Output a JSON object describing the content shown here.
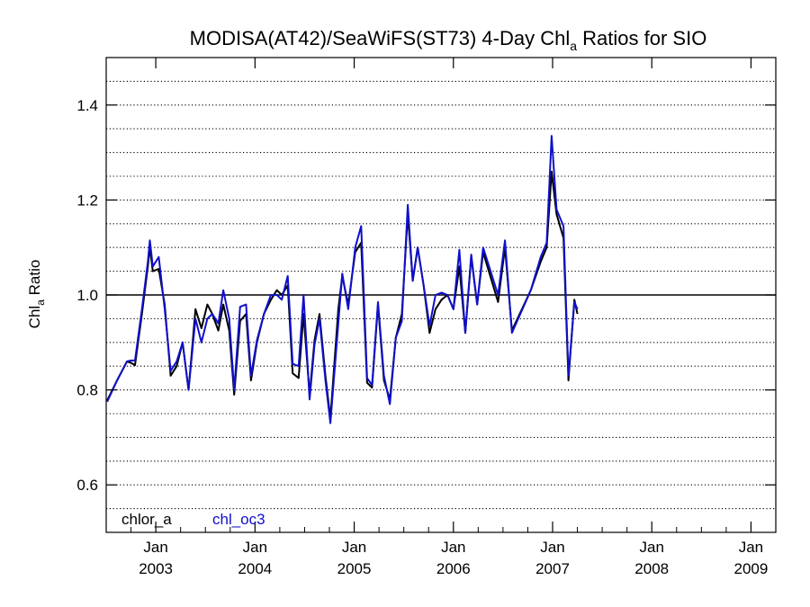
{
  "chart_data": {
    "type": "line",
    "title": {
      "main": "MODISA(AT42)/SeaWiFS(ST73) 4-Day Chl",
      "subscript": "a",
      "rest": " Ratios for SIO"
    },
    "ylabel": {
      "main": "Chl",
      "subscript": "a",
      "rest": " Ratio"
    },
    "xlabel": "",
    "ylim": [
      0.5,
      1.5
    ],
    "xlim": [
      2002.5,
      2009.25
    ],
    "yticks": [
      0.6,
      0.8,
      1.0,
      1.2,
      1.4
    ],
    "ytick_labels": [
      "0.6",
      "0.8",
      "1.0",
      "1.2",
      "1.4"
    ],
    "xticks": [
      {
        "x": 2003.0,
        "month": "Jan",
        "year": "2003"
      },
      {
        "x": 2004.0,
        "month": "Jan",
        "year": "2004"
      },
      {
        "x": 2005.0,
        "month": "Jan",
        "year": "2005"
      },
      {
        "x": 2006.0,
        "month": "Jan",
        "year": "2006"
      },
      {
        "x": 2007.0,
        "month": "Jan",
        "year": "2007"
      },
      {
        "x": 2008.0,
        "month": "Jan",
        "year": "2008"
      },
      {
        "x": 2009.0,
        "month": "Jan",
        "year": "2009"
      }
    ],
    "reference_line": 1.0,
    "grid": {
      "y_dotted": true,
      "y_step": 0.05
    },
    "legend_position": "bottom-left",
    "series": [
      {
        "name": "chlor_a",
        "color": "#000000",
        "points": [
          [
            2002.51,
            0.778
          ],
          [
            2002.61,
            0.82
          ],
          [
            2002.71,
            0.86
          ],
          [
            2002.75,
            0.857
          ],
          [
            2002.79,
            0.852
          ],
          [
            2002.86,
            0.96
          ],
          [
            2002.92,
            1.06
          ],
          [
            2002.94,
            1.1
          ],
          [
            2002.97,
            1.05
          ],
          [
            2003.03,
            1.055
          ],
          [
            2003.09,
            0.98
          ],
          [
            2003.15,
            0.83
          ],
          [
            2003.21,
            0.85
          ],
          [
            2003.27,
            0.9
          ],
          [
            2003.33,
            0.8
          ],
          [
            2003.4,
            0.97
          ],
          [
            2003.46,
            0.93
          ],
          [
            2003.52,
            0.98
          ],
          [
            2003.57,
            0.96
          ],
          [
            2003.63,
            0.925
          ],
          [
            2003.68,
            0.98
          ],
          [
            2003.74,
            0.925
          ],
          [
            2003.79,
            0.79
          ],
          [
            2003.85,
            0.945
          ],
          [
            2003.91,
            0.96
          ],
          [
            2003.96,
            0.82
          ],
          [
            2004.02,
            0.9
          ],
          [
            2004.09,
            0.96
          ],
          [
            2004.16,
            0.99
          ],
          [
            2004.22,
            1.01
          ],
          [
            2004.27,
            1.0
          ],
          [
            2004.33,
            1.02
          ],
          [
            2004.38,
            0.835
          ],
          [
            2004.44,
            0.825
          ],
          [
            2004.49,
            0.96
          ],
          [
            2004.55,
            0.79
          ],
          [
            2004.6,
            0.905
          ],
          [
            2004.65,
            0.96
          ],
          [
            2004.71,
            0.83
          ],
          [
            2004.76,
            0.74
          ],
          [
            2004.84,
            0.97
          ],
          [
            2004.88,
            1.04
          ],
          [
            2004.94,
            0.98
          ],
          [
            2005.01,
            1.09
          ],
          [
            2005.07,
            1.11
          ],
          [
            2005.13,
            0.815
          ],
          [
            2005.18,
            0.805
          ],
          [
            2005.24,
            0.98
          ],
          [
            2005.3,
            0.82
          ],
          [
            2005.36,
            0.78
          ],
          [
            2005.42,
            0.91
          ],
          [
            2005.48,
            0.96
          ],
          [
            2005.54,
            1.17
          ],
          [
            2005.59,
            1.03
          ],
          [
            2005.64,
            1.1
          ],
          [
            2005.7,
            1.02
          ],
          [
            2005.76,
            0.92
          ],
          [
            2005.82,
            0.97
          ],
          [
            2005.88,
            0.99
          ],
          [
            2005.94,
            1.0
          ],
          [
            2006.0,
            0.97
          ],
          [
            2006.06,
            1.06
          ],
          [
            2006.12,
            0.92
          ],
          [
            2006.18,
            1.08
          ],
          [
            2006.24,
            0.98
          ],
          [
            2006.3,
            1.09
          ],
          [
            2006.45,
            0.985
          ],
          [
            2006.52,
            1.1
          ],
          [
            2006.59,
            0.925
          ],
          [
            2006.78,
            1.01
          ],
          [
            2006.88,
            1.07
          ],
          [
            2006.94,
            1.1
          ],
          [
            2006.99,
            1.26
          ],
          [
            2007.04,
            1.17
          ],
          [
            2007.11,
            1.12
          ],
          [
            2007.16,
            0.82
          ],
          [
            2007.22,
            0.99
          ],
          [
            2007.25,
            0.96
          ]
        ]
      },
      {
        "name": "chl_oc3",
        "color": "#1010cc",
        "points": [
          [
            2002.51,
            0.775
          ],
          [
            2002.61,
            0.82
          ],
          [
            2002.71,
            0.86
          ],
          [
            2002.75,
            0.862
          ],
          [
            2002.79,
            0.862
          ],
          [
            2002.86,
            0.97
          ],
          [
            2002.92,
            1.07
          ],
          [
            2002.94,
            1.115
          ],
          [
            2002.97,
            1.06
          ],
          [
            2003.03,
            1.08
          ],
          [
            2003.09,
            0.97
          ],
          [
            2003.15,
            0.84
          ],
          [
            2003.21,
            0.86
          ],
          [
            2003.27,
            0.9
          ],
          [
            2003.33,
            0.8
          ],
          [
            2003.4,
            0.95
          ],
          [
            2003.46,
            0.9
          ],
          [
            2003.52,
            0.95
          ],
          [
            2003.57,
            0.96
          ],
          [
            2003.63,
            0.94
          ],
          [
            2003.68,
            1.01
          ],
          [
            2003.74,
            0.95
          ],
          [
            2003.79,
            0.8
          ],
          [
            2003.85,
            0.975
          ],
          [
            2003.91,
            0.98
          ],
          [
            2003.96,
            0.83
          ],
          [
            2004.02,
            0.905
          ],
          [
            2004.09,
            0.96
          ],
          [
            2004.16,
            1.0
          ],
          [
            2004.22,
            1.0
          ],
          [
            2004.27,
            0.99
          ],
          [
            2004.33,
            1.04
          ],
          [
            2004.38,
            0.855
          ],
          [
            2004.44,
            0.85
          ],
          [
            2004.49,
            1.0
          ],
          [
            2004.55,
            0.78
          ],
          [
            2004.6,
            0.895
          ],
          [
            2004.65,
            0.95
          ],
          [
            2004.71,
            0.82
          ],
          [
            2004.76,
            0.73
          ],
          [
            2004.84,
            0.94
          ],
          [
            2004.88,
            1.045
          ],
          [
            2004.94,
            0.97
          ],
          [
            2005.01,
            1.1
          ],
          [
            2005.07,
            1.145
          ],
          [
            2005.13,
            0.825
          ],
          [
            2005.18,
            0.81
          ],
          [
            2005.24,
            0.985
          ],
          [
            2005.3,
            0.83
          ],
          [
            2005.36,
            0.77
          ],
          [
            2005.42,
            0.91
          ],
          [
            2005.48,
            0.945
          ],
          [
            2005.54,
            1.19
          ],
          [
            2005.59,
            1.03
          ],
          [
            2005.64,
            1.1
          ],
          [
            2005.7,
            1.02
          ],
          [
            2005.76,
            0.935
          ],
          [
            2005.82,
            1.0
          ],
          [
            2005.88,
            1.005
          ],
          [
            2005.94,
            1.0
          ],
          [
            2006.0,
            0.97
          ],
          [
            2006.06,
            1.095
          ],
          [
            2006.12,
            0.92
          ],
          [
            2006.18,
            1.085
          ],
          [
            2006.24,
            0.98
          ],
          [
            2006.3,
            1.1
          ],
          [
            2006.45,
            1.0
          ],
          [
            2006.52,
            1.115
          ],
          [
            2006.59,
            0.92
          ],
          [
            2006.78,
            1.01
          ],
          [
            2006.88,
            1.08
          ],
          [
            2006.94,
            1.11
          ],
          [
            2006.99,
            1.335
          ],
          [
            2007.04,
            1.18
          ],
          [
            2007.11,
            1.145
          ],
          [
            2007.16,
            0.83
          ],
          [
            2007.22,
            0.985
          ],
          [
            2007.25,
            0.97
          ]
        ]
      }
    ]
  }
}
